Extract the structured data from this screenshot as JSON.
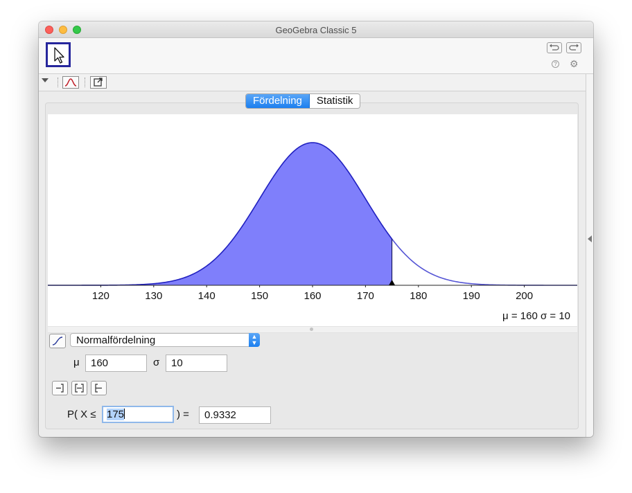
{
  "window": {
    "title": "GeoGebra Classic 5"
  },
  "toolbar": {
    "help_glyph": "?",
    "settings_glyph": "⚙"
  },
  "tabs": [
    {
      "label": "Fördelning",
      "active": true
    },
    {
      "label": "Statistik",
      "active": false
    }
  ],
  "distribution": {
    "type": "Normalfördelning",
    "params": {
      "mu_label": "μ",
      "mu": "160",
      "sigma_label": "σ",
      "sigma": "10"
    },
    "summary": "μ = 160   σ = 10"
  },
  "probability": {
    "prefix": "P( X ≤",
    "bound": "175",
    "suffix": ") =",
    "result": "0.9332"
  },
  "chart_data": {
    "type": "area",
    "distribution": "normal",
    "mu": 160,
    "sigma": 10,
    "shade_upper_bound": 175,
    "x_ticks": [
      120,
      130,
      140,
      150,
      160,
      170,
      180,
      190,
      200
    ],
    "xlim": [
      110,
      210
    ],
    "curve_color": "#2020c0",
    "fill_color": "#7f7ffb"
  }
}
